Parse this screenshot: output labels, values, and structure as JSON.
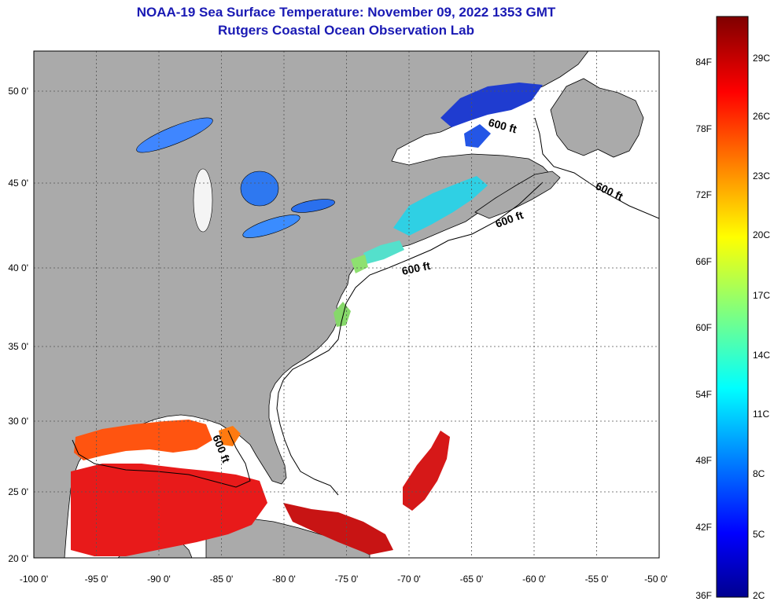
{
  "title": {
    "line1": "NOAA-19 Sea Surface Temperature:  November 09, 2022 1353 GMT",
    "line2": "Rutgers Coastal Ocean Observation Lab"
  },
  "map": {
    "lon_ticks": [
      "-100 0'",
      "-95 0'",
      "-90 0'",
      "-85 0'",
      "-80 0'",
      "-75 0'",
      "-70 0'",
      "-65 0'",
      "-60 0'",
      "-55 0'",
      "-50 0'"
    ],
    "lat_ticks": [
      "50 0'",
      "45 0'",
      "40 0'",
      "35 0'",
      "30 0'",
      "25 0'",
      "20 0'"
    ],
    "contour_label": "600 ft",
    "colors": {
      "land": "#aaaaaa",
      "no_data": "#ffffff",
      "coast": "#000000",
      "grid": "#555555"
    }
  },
  "colorbar": {
    "fahrenheit": [
      "84F",
      "78F",
      "72F",
      "66F",
      "60F",
      "54F",
      "48F",
      "42F",
      "36F"
    ],
    "celsius": [
      "29C",
      "26C",
      "23C",
      "20C",
      "17C",
      "14C",
      "11C",
      "8C",
      "5C",
      "2C"
    ]
  }
}
